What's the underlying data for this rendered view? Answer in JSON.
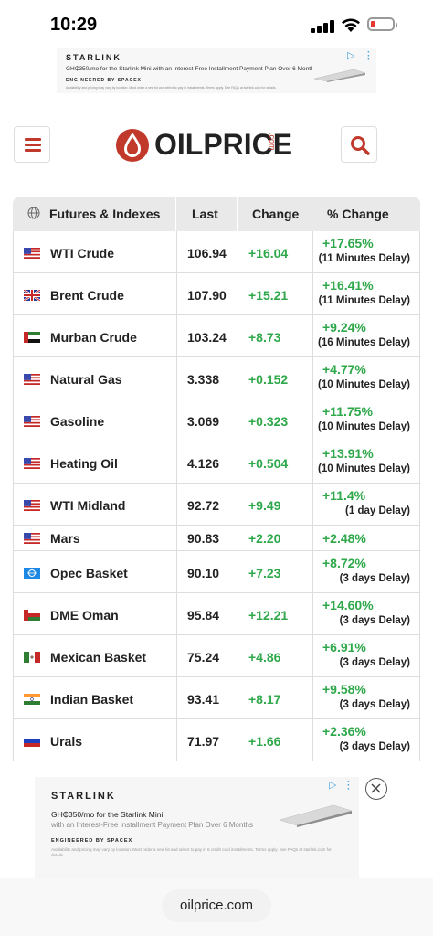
{
  "status": {
    "time": "10:29"
  },
  "ad_top": {
    "brand": "STARLINK",
    "line1": "GH₵350/mo for the Starlink Mini with an Interest-Free Installment Payment Plan Over 6 Months",
    "engineered": "ENGINEERED BY SPACEX",
    "fine": "Availability and pricing may vary by location. Must order a new kit and select to pay in installments. Terms apply. See FAQs at starlink.com for details."
  },
  "header": {
    "logo_text": "OILPRICE",
    "logo_suffix": ".com"
  },
  "table": {
    "headers": [
      "Futures & Indexes",
      "Last",
      "Change",
      "% Change"
    ],
    "rows": [
      {
        "name": "WTI Crude",
        "flag": "us",
        "last": "106.94",
        "change": "+16.04",
        "pct": "+17.65%",
        "delay": "(11 Minutes Delay)"
      },
      {
        "name": "Brent Crude",
        "flag": "uk",
        "last": "107.90",
        "change": "+15.21",
        "pct": "+16.41%",
        "delay": "(11 Minutes Delay)"
      },
      {
        "name": "Murban Crude",
        "flag": "uae",
        "last": "103.24",
        "change": "+8.73",
        "pct": "+9.24%",
        "delay": "(16 Minutes Delay)"
      },
      {
        "name": "Natural Gas",
        "flag": "us",
        "last": "3.338",
        "change": "+0.152",
        "pct": "+4.77%",
        "delay": "(10 Minutes Delay)"
      },
      {
        "name": "Gasoline",
        "flag": "us",
        "last": "3.069",
        "change": "+0.323",
        "pct": "+11.75%",
        "delay": "(10 Minutes Delay)"
      },
      {
        "name": "Heating Oil",
        "flag": "us",
        "last": "4.126",
        "change": "+0.504",
        "pct": "+13.91%",
        "delay": "(10 Minutes Delay)"
      },
      {
        "name": "WTI Midland",
        "flag": "us",
        "last": "92.72",
        "change": "+9.49",
        "pct": "+11.4%",
        "delay": "(1 day Delay)"
      },
      {
        "name": "Mars",
        "flag": "us",
        "last": "90.83",
        "change": "+2.20",
        "pct": "+2.48%",
        "delay": ""
      },
      {
        "name": "Opec Basket",
        "flag": "opec",
        "last": "90.10",
        "change": "+7.23",
        "pct": "+8.72%",
        "delay": "(3 days Delay)"
      },
      {
        "name": "DME Oman",
        "flag": "oman",
        "last": "95.84",
        "change": "+12.21",
        "pct": "+14.60%",
        "delay": "(3 days Delay)"
      },
      {
        "name": "Mexican Basket",
        "flag": "mexico",
        "last": "75.24",
        "change": "+4.86",
        "pct": "+6.91%",
        "delay": "(3 days Delay)"
      },
      {
        "name": "Indian Basket",
        "flag": "india",
        "last": "93.41",
        "change": "+8.17",
        "pct": "+9.58%",
        "delay": "(3 days Delay)"
      },
      {
        "name": "Urals",
        "flag": "russia",
        "last": "71.97",
        "change": "+1.66",
        "pct": "+2.36%",
        "delay": "(3 days Delay)"
      }
    ]
  },
  "ad_bottom": {
    "brand": "STARLINK",
    "line1": "GH₵350/mo for the Starlink Mini",
    "line2": "with an Interest-Free Installment Payment Plan Over 6 Months",
    "engineered": "ENGINEERED BY SPACEX",
    "fine": "Availability and pricing may vary by location. Must order a new kit and select to pay in 6 credit card installments. Terms apply. See FAQs at starlink.com for details."
  },
  "browser": {
    "url": "oilprice.com"
  }
}
